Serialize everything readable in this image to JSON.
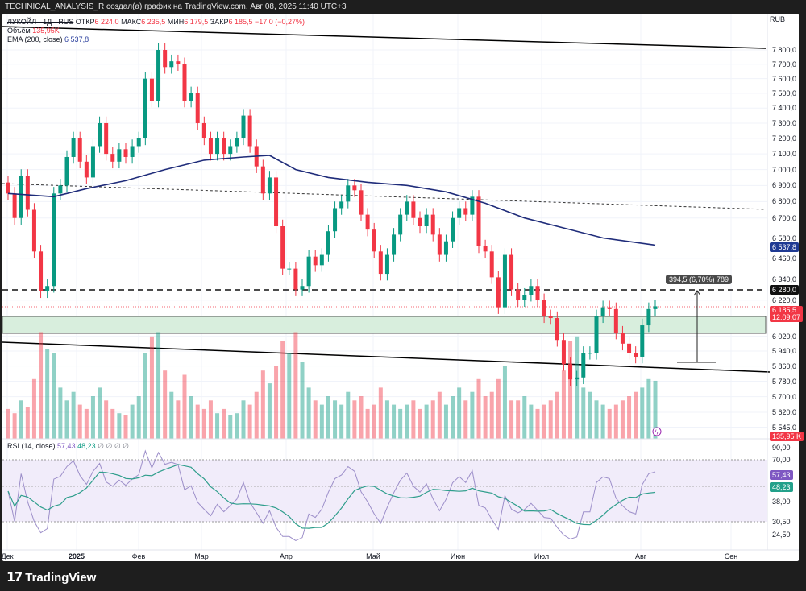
{
  "header": {
    "title": "TECHNICAL_ANALYSIS_R создал(а) график на TradingView.com, Авг 08, 2025 11:40 UTC+3"
  },
  "legend": {
    "symbol": "ЛУКОЙЛ · 1Д · RUS",
    "open_label": "ОТКР",
    "open": "6 224,0",
    "high_label": "МАКС",
    "high": "6 235,5",
    "low_label": "МИН",
    "low": "6 179,5",
    "close_label": "ЗАКР",
    "close": "6 185,5",
    "change": "−17,0 (−0,27%)",
    "volume_label": "Объём",
    "volume": "135,95K",
    "ema_label": "EMA (200, close)",
    "ema": "6 537,8",
    "rsi_label": "RSI (14, close)",
    "rsi": "57,43",
    "rsi_ma": "48,23",
    "rsi_extra": "∅ ∅ ∅ ∅"
  },
  "currency": "RUB",
  "measure_label": "394,5 (6,70%) 789",
  "badges": {
    "ema": "6 537,8",
    "level": "6 280,0",
    "last_price": "6 185,5",
    "countdown": "12:09:07",
    "volume": "135,95 K",
    "rsi": "57,43",
    "rsi_ma": "48,23"
  },
  "colors": {
    "up": "#089981",
    "down": "#f23645",
    "ema": "#1f2c7a",
    "rsi": "#9c8ec9",
    "rsi_ma": "#2f9e8c",
    "zone": "#d8eedd"
  },
  "brand": "TradingView",
  "chart_data": {
    "type": "candlestick",
    "title": "ЛУКОЙЛ · 1Д · RUS",
    "ylabel": "RUB",
    "yscale": "log",
    "ylim": [
      5545,
      7900
    ],
    "x_tick_labels": [
      "Дек",
      "2025",
      "Фев",
      "Мар",
      "Апр",
      "Май",
      "Июн",
      "Июл",
      "Авг",
      "Сен"
    ],
    "y_tick_labels": [
      "7 800,0",
      "7 700,0",
      "7 600,0",
      "7 500,0",
      "7 400,0",
      "7 300,0",
      "7 200,0",
      "7 100,0",
      "7 000,0",
      "6 900,0",
      "6 800,0",
      "6 700,0",
      "6 580,0",
      "6 460,0",
      "6 340,0",
      "6 220,0",
      "6 020,0",
      "5 940,0",
      "5 860,0",
      "5 780,0",
      "5 700,0",
      "5 620,0",
      "5 545,0"
    ],
    "y_tick_values": [
      7800,
      7700,
      7600,
      7500,
      7400,
      7300,
      7200,
      7100,
      7000,
      6900,
      6800,
      6700,
      6580,
      6460,
      6340,
      6220,
      6020,
      5940,
      5860,
      5780,
      5700,
      5620,
      5545
    ],
    "closes": [
      6850,
      6700,
      6960,
      6750,
      6500,
      6270,
      6300,
      6850,
      6900,
      7080,
      7200,
      7050,
      6950,
      7150,
      7300,
      7100,
      7050,
      7130,
      7080,
      7150,
      7200,
      7600,
      7450,
      7800,
      7680,
      7720,
      7700,
      7450,
      7500,
      7300,
      7200,
      7100,
      7200,
      7100,
      7150,
      7200,
      7350,
      7150,
      7020,
      6850,
      6950,
      6650,
      6400,
      6400,
      6280,
      6300,
      6470,
      6420,
      6480,
      6620,
      6760,
      6800,
      6900,
      6870,
      6720,
      6630,
      6500,
      6370,
      6480,
      6600,
      6720,
      6800,
      6700,
      6650,
      6720,
      6600,
      6480,
      6560,
      6700,
      6760,
      6720,
      6830,
      6530,
      6500,
      6350,
      6180,
      6480,
      6280,
      6220,
      6250,
      6300,
      6220,
      6130,
      6120,
      6000,
      5870,
      5790,
      5800,
      5930,
      5930,
      6130,
      6180,
      6170,
      6040,
      5980,
      5930,
      5910,
      6080,
      6170,
      6185.5
    ],
    "volumes_k": [
      70,
      60,
      90,
      75,
      140,
      250,
      210,
      200,
      120,
      90,
      110,
      80,
      70,
      100,
      120,
      90,
      70,
      60,
      55,
      80,
      100,
      200,
      240,
      250,
      160,
      110,
      90,
      150,
      100,
      80,
      70,
      90,
      60,
      70,
      55,
      60,
      90,
      80,
      110,
      160,
      130,
      170,
      230,
      200,
      250,
      180,
      120,
      90,
      80,
      100,
      90,
      80,
      110,
      90,
      100,
      70,
      80,
      120,
      90,
      80,
      70,
      80,
      90,
      70,
      80,
      90,
      110,
      80,
      100,
      120,
      90,
      110,
      140,
      100,
      110,
      140,
      170,
      90,
      90,
      100,
      80,
      70,
      80,
      90,
      110,
      160,
      230,
      240,
      120,
      110,
      90,
      80,
      70,
      80,
      90,
      100,
      110,
      120,
      140,
      135.95
    ],
    "ema_200": [
      [
        0,
        6850
      ],
      [
        7,
        6830
      ],
      [
        12,
        6880
      ],
      [
        18,
        6930
      ],
      [
        24,
        7000
      ],
      [
        30,
        7060
      ],
      [
        36,
        7080
      ],
      [
        40,
        7090
      ],
      [
        44,
        7000
      ],
      [
        49,
        6950
      ],
      [
        55,
        6920
      ],
      [
        61,
        6900
      ],
      [
        67,
        6860
      ],
      [
        73,
        6790
      ],
      [
        79,
        6700
      ],
      [
        85,
        6640
      ],
      [
        91,
        6580
      ],
      [
        99,
        6537.8
      ]
    ],
    "annotations": {
      "resistance_level": 6280,
      "support_zone": [
        6050,
        6140
      ],
      "measure": "394,5 (6,70%) 789"
    },
    "rsi": {
      "period": 14,
      "last": 57.43,
      "ma_last": 48.23,
      "bands": [
        30.5,
        70
      ],
      "y_tick_labels": [
        "90,00",
        "70,00",
        "38,00",
        "30,50",
        "24,50"
      ]
    }
  }
}
